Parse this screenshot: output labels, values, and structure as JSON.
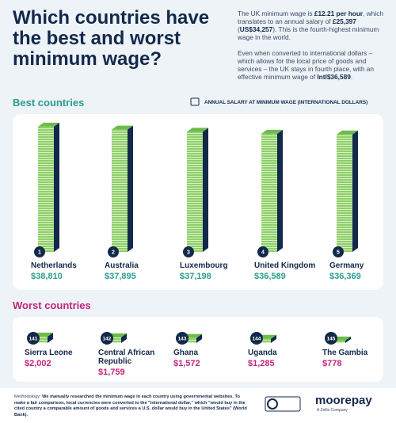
{
  "title": "Which countries have the best and worst minimum wage?",
  "intro": [
    [
      "The UK minimum wage is ",
      "£12.21 per hour",
      ", which translates to an annual salary of ",
      "£25,397",
      " (",
      "US$34,257",
      "). This is the fourth-highest minimum wage in the world."
    ],
    [
      "Even when converted to international dollars – which allows for the local price of goods and services – the UK stays in fourth place, with an effective minimum wage of ",
      "Intl$36,589",
      "."
    ]
  ],
  "legend": "ANNUAL SALARY AT MINIMUM WAGE (INTERNATIONAL DOLLARS)",
  "chart_data": [
    {
      "type": "bar",
      "title": "Best countries",
      "color": "#2a9d8f",
      "ylim": [
        0,
        40000
      ],
      "ranks": [
        1,
        2,
        3,
        4,
        5
      ],
      "categories": [
        "Netherlands",
        "Australia",
        "Luxembourg",
        "United Kingdom",
        "Germany"
      ],
      "values": [
        38810,
        37895,
        37198,
        36589,
        36369
      ],
      "value_labels": [
        "$38,810",
        "$37,895",
        "$37,198",
        "$36,589",
        "$36,369"
      ]
    },
    {
      "type": "bar",
      "title": "Worst countries",
      "color": "#c0267a",
      "ylim": [
        0,
        40000
      ],
      "ranks": [
        141,
        142,
        143,
        144,
        145
      ],
      "categories": [
        "Sierra Leone",
        "Central African Republic",
        "Ghana",
        "Uganda",
        "The Gambia"
      ],
      "values": [
        2002,
        1759,
        1572,
        1285,
        778
      ],
      "value_labels": [
        "$2,002",
        "$1,759",
        "$1,572",
        "$1,285",
        "$778"
      ]
    }
  ],
  "methodology": [
    "Methodology:",
    " We manually researched the minimum wage in each country using governmental websites. To make a fair comparison, local currencies were converted to the \"international dollar,\" which \"would buy in the cited country a comparable amount of goods and services a U.S. dollar would buy in the United States\" (World Bank)."
  ],
  "logo": "moorepay",
  "logo_sub": "A Zellis Company"
}
